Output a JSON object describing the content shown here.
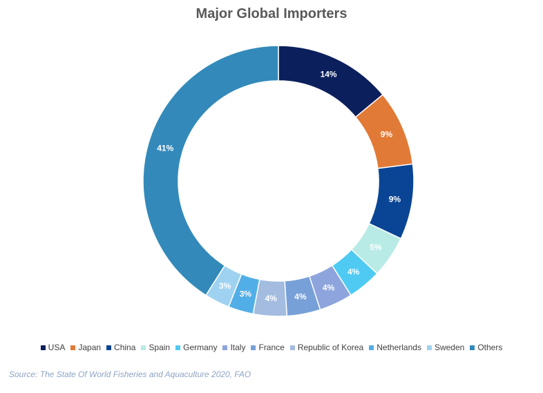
{
  "chart_data": {
    "type": "pie",
    "style": "donut",
    "title": "Major Global Importers",
    "source": "Source: The State Of World Fisheries and Aquaculture 2020, FAO",
    "legend_position": "bottom",
    "slices": [
      {
        "label": "USA",
        "value": 14,
        "display": "14%",
        "color": "#0b1f5c",
        "label_color": "#ffffff"
      },
      {
        "label": "Japan",
        "value": 9,
        "display": "9%",
        "color": "#e27a37",
        "label_color": "#ffffff"
      },
      {
        "label": "China",
        "value": 9,
        "display": "9%",
        "color": "#0a4595",
        "label_color": "#ffffff"
      },
      {
        "label": "Spain",
        "value": 5,
        "display": "5%",
        "color": "#b9ebe6",
        "label_color": "#ffffff"
      },
      {
        "label": "Germany",
        "value": 4,
        "display": "4%",
        "color": "#4fcbf3",
        "label_color": "#ffffff"
      },
      {
        "label": "Italy",
        "value": 4,
        "display": "4%",
        "color": "#8ea4dc",
        "label_color": "#ffffff"
      },
      {
        "label": "France",
        "value": 4,
        "display": "4%",
        "color": "#78a0d8",
        "label_color": "#ffffff"
      },
      {
        "label": "Republic of Korea",
        "value": 4,
        "display": "4%",
        "color": "#a3bce0",
        "label_color": "#ffffff"
      },
      {
        "label": "Netherlands",
        "value": 3,
        "display": "3%",
        "color": "#52aee6",
        "label_color": "#ffffff"
      },
      {
        "label": "Sweden",
        "value": 3,
        "display": "3%",
        "color": "#9fd2f0",
        "label_color": "#ffffff"
      },
      {
        "label": "Others",
        "value": 41,
        "display": "41%",
        "color": "#338aba",
        "label_color": "#ffffff"
      }
    ]
  }
}
